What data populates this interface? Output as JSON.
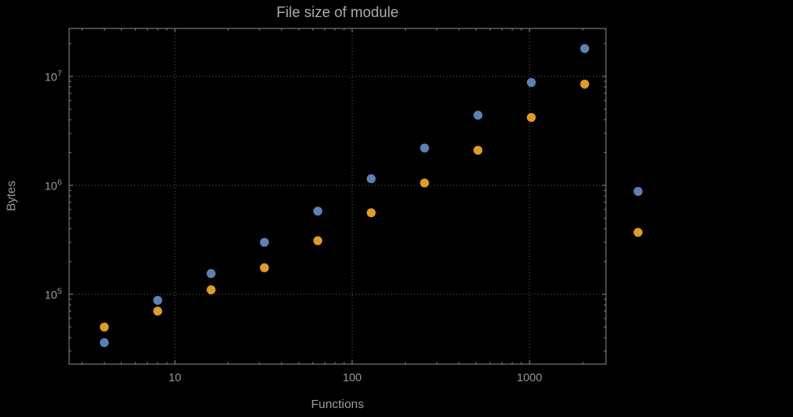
{
  "colors": {
    "background": "#000000",
    "frame": "#8a8a8a",
    "grid": "#5e5e5e",
    "text": "#9b9b9b",
    "series_blue": "#5e81b5",
    "series_orange": "#e19c24"
  },
  "chart_data": {
    "type": "scatter",
    "title": "File size of module",
    "xlabel": "Functions",
    "ylabel": "Bytes",
    "xscale": "log",
    "yscale": "log",
    "grid": true,
    "legend": "none",
    "xlim": [
      2.5,
      2700
    ],
    "ylim": [
      23000,
      27500000
    ],
    "x": [
      4,
      8,
      16,
      32,
      64,
      128,
      256,
      512,
      1024,
      2048,
      4096
    ],
    "series": [
      {
        "name": "blue",
        "color": "#5e81b5",
        "values": [
          36000,
          88000,
          155000,
          300000,
          580000,
          1150000,
          2200000,
          4400000,
          8800000,
          18000000,
          880000
        ]
      },
      {
        "name": "orange",
        "color": "#e19c24",
        "values": [
          50000,
          70000,
          110000,
          175000,
          310000,
          560000,
          1050000,
          2100000,
          4200000,
          8500000,
          370000
        ]
      }
    ],
    "x_ticks": [
      10,
      100,
      1000
    ],
    "x_tick_labels": [
      "10",
      "100",
      "1000"
    ],
    "y_ticks": [
      100000,
      1000000,
      10000000
    ],
    "y_tick_base": "10",
    "y_tick_exponents": [
      "5",
      "6",
      "7"
    ]
  }
}
